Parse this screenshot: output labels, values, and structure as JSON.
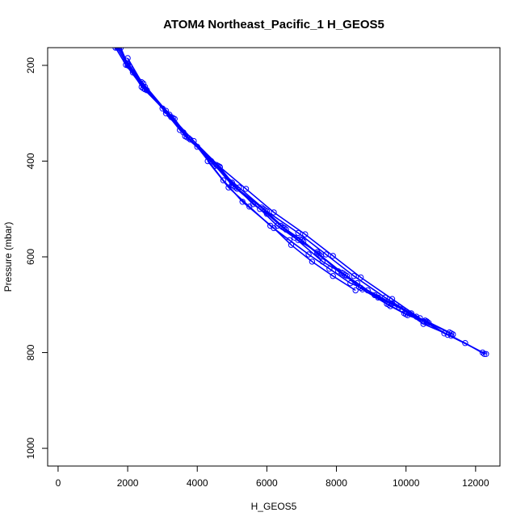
{
  "chart_data": {
    "type": "line",
    "title": "ATOM4 Northeast_Pacific_1 H_GEOS5",
    "xlabel": "H_GEOS5",
    "ylabel": "Pressure (mbar)",
    "xlim": [
      -300,
      12700
    ],
    "ylim": [
      1037,
      163
    ],
    "y_reversed": true,
    "grid": false,
    "legend": "none",
    "x_ticks": [
      0,
      2000,
      4000,
      6000,
      8000,
      10000,
      12000
    ],
    "y_ticks": [
      200,
      400,
      600,
      800,
      1000
    ],
    "series_color": "#0000ff",
    "marker": "open-circle",
    "series": [
      {
        "x": [
          1700,
          2000,
          2500,
          3300,
          3700,
          4600,
          5100,
          5900,
          6500,
          7000,
          7500,
          8200,
          8700,
          9500,
          10000,
          10600,
          11300
        ],
        "y": [
          163,
          200,
          250,
          310,
          350,
          410,
          455,
          500,
          540,
          565,
          595,
          635,
          665,
          700,
          720,
          735,
          760
        ]
      },
      {
        "x": [
          1750,
          2050,
          2550,
          3350,
          3750,
          4650,
          5150,
          5950,
          6550,
          7050,
          7550,
          8250,
          8750,
          9550,
          10050,
          10650,
          11350
        ],
        "y": [
          163,
          202,
          252,
          312,
          352,
          413,
          458,
          503,
          543,
          568,
          598,
          638,
          668,
          703,
          722,
          738,
          762
        ]
      },
      {
        "x": [
          1650,
          1950,
          2450,
          3250,
          3650,
          4550,
          5050,
          5850,
          6450,
          6950,
          7450,
          8150,
          8650,
          9450,
          9950,
          10550,
          11250
        ],
        "y": [
          163,
          199,
          248,
          308,
          348,
          408,
          452,
          497,
          538,
          563,
          593,
          633,
          663,
          698,
          718,
          733,
          758
        ]
      },
      {
        "x": [
          1800,
          2000,
          2400,
          3100,
          3600,
          4400,
          5000,
          5800,
          6300,
          6800,
          7600,
          8300,
          9100,
          9800,
          10500,
          11300,
          12200
        ],
        "y": [
          163,
          198,
          245,
          295,
          340,
          400,
          450,
          500,
          535,
          560,
          610,
          640,
          680,
          705,
          740,
          765,
          800
        ]
      },
      {
        "x": [
          2150,
          2500,
          3000,
          3500,
          4000,
          4750,
          5300,
          6200,
          6700,
          7300,
          7900,
          8550
        ],
        "y": [
          215,
          245,
          290,
          335,
          370,
          440,
          485,
          540,
          575,
          610,
          640,
          670
        ]
      },
      {
        "x": [
          2000,
          2400,
          3100,
          3800,
          4500,
          5200,
          6000,
          6900,
          7700,
          8500,
          9400,
          10300,
          11100,
          11700,
          12250
        ],
        "y": [
          185,
          235,
          300,
          355,
          410,
          455,
          505,
          550,
          595,
          640,
          685,
          725,
          760,
          780,
          803
        ]
      },
      {
        "x": [
          1950,
          2450,
          3200,
          3900,
          4650,
          5400,
          6200,
          7100,
          7900,
          8700,
          9600,
          10400,
          11200,
          12300
        ],
        "y": [
          190,
          238,
          303,
          358,
          412,
          458,
          507,
          553,
          598,
          643,
          688,
          728,
          763,
          803
        ]
      },
      {
        "x": [
          4300,
          4900,
          5500,
          6100,
          6650,
          7200,
          7800,
          8400,
          8900,
          9600,
          10150,
          10600
        ],
        "y": [
          400,
          455,
          495,
          535,
          565,
          595,
          625,
          655,
          670,
          697,
          718,
          737
        ]
      },
      {
        "x": [
          5000,
          5600,
          6000,
          6400,
          6900,
          7450,
          8050,
          8600,
          9200,
          9900,
          10500
        ],
        "y": [
          445,
          490,
          510,
          535,
          565,
          590,
          630,
          655,
          685,
          710,
          735
        ]
      }
    ]
  }
}
